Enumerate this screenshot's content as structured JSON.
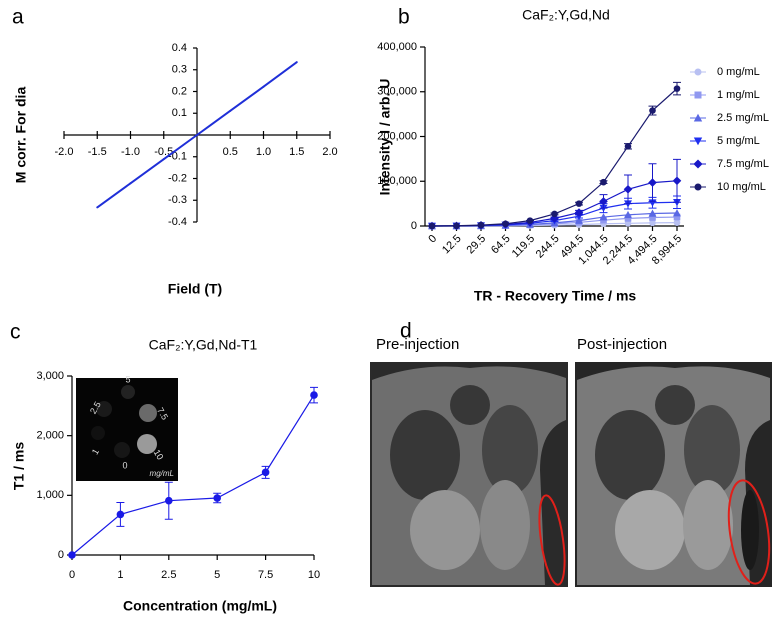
{
  "chart_data": [
    {
      "type": "line",
      "panel": "a",
      "axes": "centered",
      "x": [
        -1.5,
        -1,
        -0.5,
        0,
        0.5,
        1,
        1.5
      ],
      "values": [
        -0.333,
        -0.222,
        -0.111,
        0,
        0.111,
        0.222,
        0.335
      ],
      "color": "#1f2fd8",
      "xlim": [
        -2,
        2
      ],
      "ylim": [
        -0.4,
        0.4
      ],
      "xticks": [
        {
          "value": -2,
          "label": "-2.0"
        },
        -1.5,
        {
          "value": -1,
          "label": "-1.0"
        },
        -0.5,
        0.5,
        {
          "value": 1,
          "label": "1.0"
        },
        1.5,
        {
          "value": 2,
          "label": "2.0"
        }
      ],
      "yticks": [
        0.4,
        0.3,
        0.2,
        0.1,
        -0.1,
        -0.2,
        -0.3,
        -0.4
      ],
      "xlabel": "Field (T)",
      "ylabel": "M corr. For dia"
    },
    {
      "type": "line",
      "panel": "b",
      "title": "CaF₂:Y,Gd,Nd",
      "categories": [
        "0",
        "12.5",
        "29.5",
        "64.5",
        "119.5",
        "244.5",
        "494.5",
        "1,044.5",
        "2,244.5",
        "4,494.5",
        "8,994.5"
      ],
      "series": [
        {
          "name": "0 mg/mL",
          "color": "#b8c0f2",
          "marker": "circle",
          "values": [
            0,
            50,
            200,
            500,
            1000,
            2000,
            3000,
            5000,
            6000,
            7000,
            7500
          ]
        },
        {
          "name": "1 mg/mL",
          "color": "#9098f0",
          "marker": "square",
          "values": [
            0,
            100,
            300,
            1000,
            2500,
            5000,
            8000,
            13000,
            17000,
            19000,
            20000
          ]
        },
        {
          "name": "2.5 mg/mL",
          "color": "#5a68e4",
          "marker": "triangle-up",
          "values": [
            0,
            100,
            500,
            1500,
            3500,
            7000,
            12000,
            20000,
            25000,
            28000,
            29000
          ]
        },
        {
          "name": "5 mg/mL",
          "color": "#1f2ff0",
          "marker": "triangle-down",
          "values": [
            0,
            200,
            1000,
            2500,
            6000,
            12000,
            22000,
            40000,
            50000,
            52000,
            53000
          ],
          "errors": [
            0,
            0,
            0,
            0,
            0,
            2000,
            4000,
            10000,
            12000,
            12000,
            14000
          ]
        },
        {
          "name": "7.5 mg/mL",
          "color": "#1818c8",
          "marker": "diamond",
          "values": [
            0,
            300,
            1500,
            3500,
            8000,
            17000,
            30000,
            55000,
            82000,
            97000,
            101000
          ],
          "errors": [
            0,
            0,
            0,
            0,
            0,
            3000,
            5000,
            15000,
            32000,
            42000,
            48000
          ]
        },
        {
          "name": "10 mg/mL",
          "color": "#1a1a6e",
          "marker": "circle",
          "values": [
            0,
            500,
            2000,
            5000,
            12000,
            27000,
            50000,
            98000,
            178000,
            258000,
            307000
          ],
          "errors": [
            0,
            0,
            0,
            0,
            0,
            2000,
            3000,
            3000,
            6000,
            10000,
            14000
          ]
        }
      ],
      "ylim": [
        0,
        400000
      ],
      "yticks": [
        0,
        {
          "value": 100000,
          "label": "100,000"
        },
        {
          "value": 200000,
          "label": "200,000"
        },
        {
          "value": 300000,
          "label": "300,000"
        },
        {
          "value": 400000,
          "label": "400,000"
        }
      ],
      "xlabel": "TR - Recovery Time / ms",
      "ylabel": "Intensity I / arb. U",
      "legend": "right"
    },
    {
      "type": "line",
      "panel": "c",
      "title": "CaF₂:Y,Gd,Nd-T1",
      "categories": [
        "0",
        "1",
        "2.5",
        "5",
        "7.5",
        "10"
      ],
      "values": [
        0,
        680,
        910,
        955,
        1385,
        2680
      ],
      "errors": [
        0,
        200,
        310,
        80,
        100,
        130
      ],
      "color": "#1a1ae6",
      "ylim": [
        0,
        3000
      ],
      "yticks": [
        0,
        {
          "value": 1000,
          "label": "1,000"
        },
        {
          "value": 2000,
          "label": "2,000"
        },
        {
          "value": 3000,
          "label": "3,000"
        }
      ],
      "xlabel": "Concentration (mg/mL)",
      "ylabel": "T1 / ms",
      "inset": {
        "labels": [
          "2.5",
          "5",
          "7.5",
          "1",
          "10",
          "0"
        ],
        "unit": "mg/mL"
      }
    }
  ],
  "figure_d": {
    "panel": "d",
    "captions": [
      "Pre-injection",
      "Post-injection"
    ]
  }
}
